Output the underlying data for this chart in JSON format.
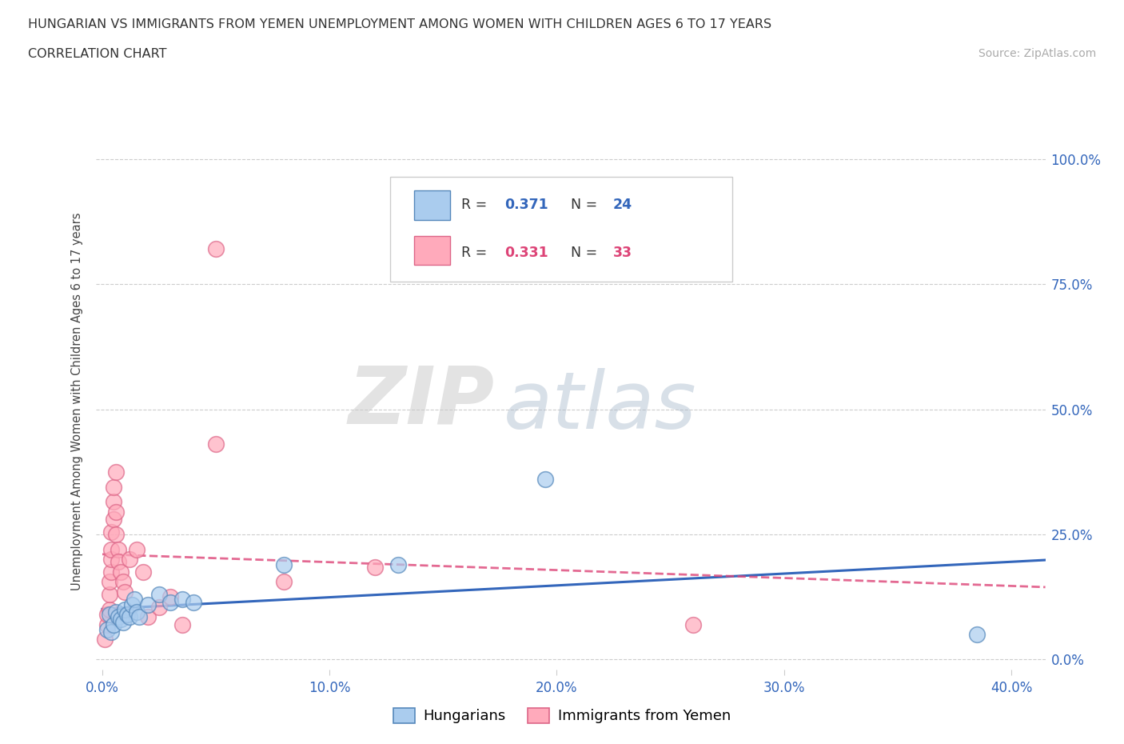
{
  "title_line1": "HUNGARIAN VS IMMIGRANTS FROM YEMEN UNEMPLOYMENT AMONG WOMEN WITH CHILDREN AGES 6 TO 17 YEARS",
  "title_line2": "CORRELATION CHART",
  "source": "Source: ZipAtlas.com",
  "ylabel": "Unemployment Among Women with Children Ages 6 to 17 years",
  "xlabel_ticks": [
    "0.0%",
    "10.0%",
    "20.0%",
    "30.0%",
    "40.0%"
  ],
  "xlabel_vals": [
    0.0,
    0.1,
    0.2,
    0.3,
    0.4
  ],
  "ylabel_ticks": [
    "0.0%",
    "25.0%",
    "50.0%",
    "75.0%",
    "100.0%"
  ],
  "ylabel_vals": [
    0.0,
    0.25,
    0.5,
    0.75,
    1.0
  ],
  "xlim": [
    -0.003,
    0.415
  ],
  "ylim": [
    -0.02,
    1.05
  ],
  "blue_scatter_color": "#aaccee",
  "blue_scatter_edge": "#5588bb",
  "pink_scatter_color": "#ffaabb",
  "pink_scatter_edge": "#dd6688",
  "blue_line_color": "#3366bb",
  "pink_line_color": "#dd4477",
  "R_blue": 0.371,
  "N_blue": 24,
  "R_pink": 0.331,
  "N_pink": 33,
  "legend_label_blue": "Hungarians",
  "legend_label_pink": "Immigrants from Yemen",
  "watermark": "ZIPatlas",
  "blue_points": [
    [
      0.002,
      0.06
    ],
    [
      0.003,
      0.09
    ],
    [
      0.004,
      0.055
    ],
    [
      0.005,
      0.07
    ],
    [
      0.006,
      0.095
    ],
    [
      0.007,
      0.085
    ],
    [
      0.008,
      0.08
    ],
    [
      0.009,
      0.075
    ],
    [
      0.01,
      0.1
    ],
    [
      0.011,
      0.09
    ],
    [
      0.012,
      0.085
    ],
    [
      0.013,
      0.11
    ],
    [
      0.014,
      0.12
    ],
    [
      0.015,
      0.095
    ],
    [
      0.016,
      0.085
    ],
    [
      0.02,
      0.11
    ],
    [
      0.025,
      0.13
    ],
    [
      0.03,
      0.115
    ],
    [
      0.035,
      0.12
    ],
    [
      0.04,
      0.115
    ],
    [
      0.08,
      0.19
    ],
    [
      0.13,
      0.19
    ],
    [
      0.195,
      0.36
    ],
    [
      0.385,
      0.05
    ]
  ],
  "pink_points": [
    [
      0.001,
      0.04
    ],
    [
      0.002,
      0.07
    ],
    [
      0.002,
      0.09
    ],
    [
      0.003,
      0.1
    ],
    [
      0.003,
      0.13
    ],
    [
      0.003,
      0.155
    ],
    [
      0.004,
      0.175
    ],
    [
      0.004,
      0.2
    ],
    [
      0.004,
      0.22
    ],
    [
      0.004,
      0.255
    ],
    [
      0.005,
      0.28
    ],
    [
      0.005,
      0.315
    ],
    [
      0.005,
      0.345
    ],
    [
      0.006,
      0.375
    ],
    [
      0.006,
      0.295
    ],
    [
      0.006,
      0.25
    ],
    [
      0.007,
      0.22
    ],
    [
      0.007,
      0.195
    ],
    [
      0.008,
      0.175
    ],
    [
      0.009,
      0.155
    ],
    [
      0.01,
      0.135
    ],
    [
      0.012,
      0.2
    ],
    [
      0.015,
      0.22
    ],
    [
      0.018,
      0.175
    ],
    [
      0.02,
      0.085
    ],
    [
      0.025,
      0.105
    ],
    [
      0.03,
      0.125
    ],
    [
      0.035,
      0.07
    ],
    [
      0.05,
      0.43
    ],
    [
      0.08,
      0.155
    ],
    [
      0.12,
      0.185
    ],
    [
      0.05,
      0.82
    ],
    [
      0.26,
      0.07
    ]
  ]
}
